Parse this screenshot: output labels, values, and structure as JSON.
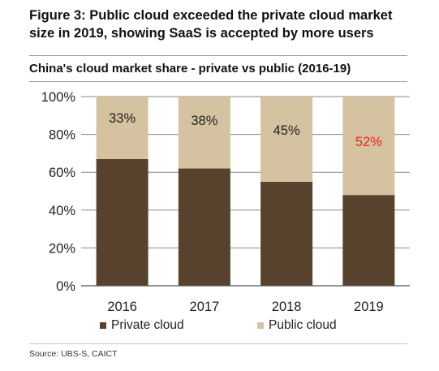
{
  "figure_title": "Figure 3: Public cloud exceeded the private cloud market size in 2019, showing SaaS is accepted by more users",
  "source": "Source:  UBS-S, CAICT",
  "colors": {
    "private": "#57422d",
    "public": "#d5c2a0",
    "highlight_label": "#e8261f"
  },
  "chart_data": {
    "type": "bar",
    "stacked": true,
    "title": "China's cloud market  share - private vs public (2016-19)",
    "categories": [
      "2016",
      "2017",
      "2018",
      "2019"
    ],
    "series": [
      {
        "name": "Private cloud",
        "values": [
          67,
          62,
          55,
          48
        ]
      },
      {
        "name": "Public cloud",
        "values": [
          33,
          38,
          45,
          52
        ]
      }
    ],
    "data_labels": [
      "33%",
      "38%",
      "45%",
      "52%"
    ],
    "ylim": [
      0,
      100
    ],
    "yticks": [
      "0%",
      "20%",
      "40%",
      "60%",
      "80%",
      "100%"
    ],
    "grid": true,
    "legend_position": "bottom"
  }
}
